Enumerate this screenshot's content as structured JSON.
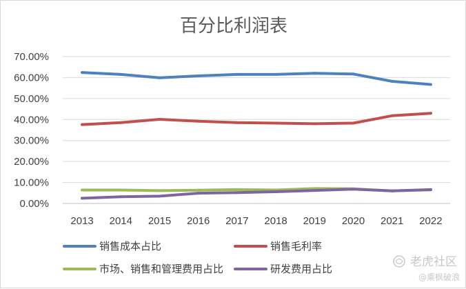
{
  "chart_data": {
    "type": "line",
    "title": "百分比利润表",
    "xlabel": "",
    "ylabel": "",
    "categories": [
      "2013",
      "2014",
      "2015",
      "2016",
      "2017",
      "2018",
      "2019",
      "2020",
      "2021",
      "2022"
    ],
    "ylim": [
      0,
      70
    ],
    "yticks": [
      0,
      10,
      20,
      30,
      40,
      50,
      60,
      70
    ],
    "ytick_labels": [
      "0.00%",
      "10.00%",
      "20.00%",
      "30.00%",
      "40.00%",
      "50.00%",
      "60.00%",
      "70.00%"
    ],
    "grid": true,
    "legend_position": "bottom",
    "series": [
      {
        "name": "销售成本占比",
        "color": "#4f81bd",
        "values": [
          62.4,
          61.5,
          59.9,
          60.8,
          61.5,
          61.5,
          62.0,
          61.7,
          58.2,
          56.7
        ]
      },
      {
        "name": "销售毛利率",
        "color": "#c0504d",
        "values": [
          37.6,
          38.5,
          40.1,
          39.2,
          38.5,
          38.3,
          38.0,
          38.3,
          41.8,
          43.0
        ]
      },
      {
        "name": "市场、销售和管理费用占比",
        "color": "#9bbb59",
        "values": [
          6.4,
          6.4,
          6.1,
          6.3,
          6.6,
          6.4,
          7.1,
          7.0,
          6.0,
          6.5
        ]
      },
      {
        "name": "研发费用占比",
        "color": "#8064a2",
        "values": [
          2.5,
          3.2,
          3.5,
          4.9,
          5.2,
          5.6,
          6.2,
          6.8,
          6.0,
          6.6
        ]
      }
    ]
  },
  "watermark": {
    "main": "老虎社区",
    "sub": "@乘枫破浪",
    "icon": "tiger-community-logo-icon"
  }
}
